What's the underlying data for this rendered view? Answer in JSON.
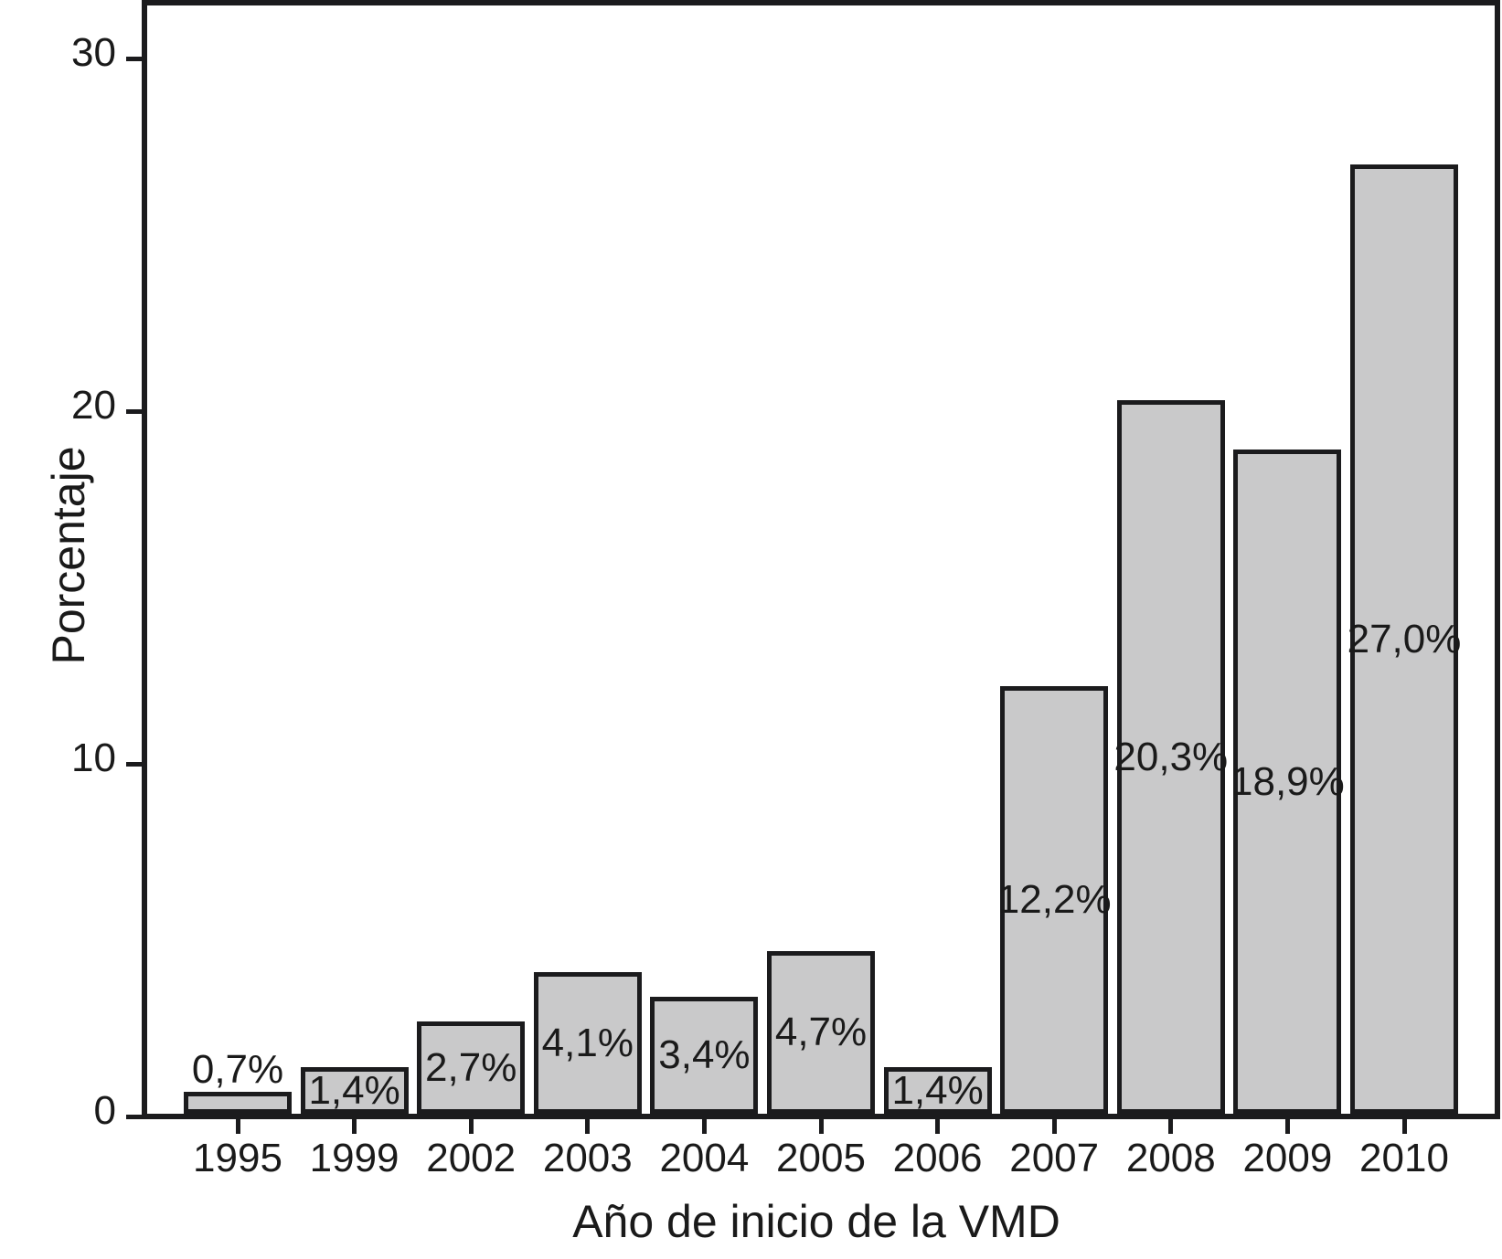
{
  "chart_data": {
    "type": "bar",
    "title": "",
    "xlabel": "Año de inicio de la VMD",
    "ylabel": "Porcentaje",
    "categories": [
      "1995",
      "1999",
      "2002",
      "2003",
      "2004",
      "2005",
      "2006",
      "2007",
      "2008",
      "2009",
      "2010"
    ],
    "values": [
      0.7,
      1.4,
      2.7,
      4.1,
      3.4,
      4.7,
      1.4,
      12.2,
      20.3,
      18.9,
      27.0
    ],
    "bar_labels": [
      "0,7%",
      "1,4%",
      "2,7%",
      "4,1%",
      "3,4%",
      "4,7%",
      "1,4%",
      "12,2%",
      "20,3%",
      "18,9%",
      "27,0%"
    ],
    "bar_label_position": [
      "above",
      "inside",
      "inside",
      "inside",
      "inside",
      "inside",
      "inside",
      "inside",
      "inside",
      "inside",
      "inside"
    ],
    "yticks": [
      0,
      10,
      20,
      30
    ],
    "ytick_labels": [
      "0",
      "10",
      "20",
      "30"
    ],
    "ylim": [
      0,
      31.5
    ],
    "grid": false,
    "legend": null,
    "frame": "full-box",
    "colors": {
      "bar_fill": "#c9c9ca",
      "bar_border": "#1b1b1d",
      "axis_line": "#1b1b1d",
      "text": "#1a1a1a",
      "background": "#ffffff"
    }
  }
}
